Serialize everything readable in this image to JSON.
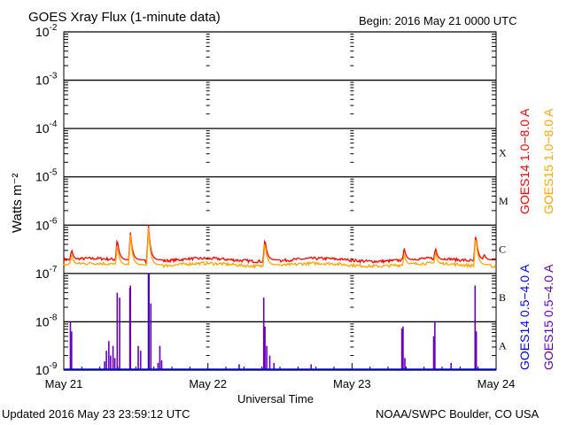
{
  "header": {
    "title": "GOES Xray Flux (1-minute data)",
    "begin": "Begin:  2016 May 21 0000 UTC"
  },
  "footer": {
    "updated": "Updated 2016 May 23 23:59:12 UTC",
    "source": "NOAA/SWPC Boulder, CO USA"
  },
  "chart_data": {
    "type": "line",
    "title": "GOES Xray Flux (1-minute data)",
    "xlabel": "Universal Time",
    "ylabel": "Watts m⁻²",
    "xlim": [
      0,
      72
    ],
    "ylim_log10": [
      -9,
      -2
    ],
    "yscale": "log",
    "x_ticks": [
      {
        "h": 0,
        "label": "May 21"
      },
      {
        "h": 24,
        "label": "May 22"
      },
      {
        "h": 48,
        "label": "May 23"
      },
      {
        "h": 72,
        "label": "May 24"
      }
    ],
    "y_ticks": [
      {
        "e": -2,
        "label": "-2"
      },
      {
        "e": -3,
        "label": "-3"
      },
      {
        "e": -4,
        "label": "-4"
      },
      {
        "e": -5,
        "label": "-5"
      },
      {
        "e": -6,
        "label": "-6"
      },
      {
        "e": -7,
        "label": "-7"
      },
      {
        "e": -8,
        "label": "-8"
      },
      {
        "e": -9,
        "label": "-9"
      }
    ],
    "flare_classes": [
      {
        "label": "X",
        "e": -4
      },
      {
        "label": "M",
        "e": -5
      },
      {
        "label": "C",
        "e": -6
      },
      {
        "label": "B",
        "e": -7
      },
      {
        "label": "A",
        "e": -8
      }
    ],
    "series": [
      {
        "name": "GOES14 1.0−8.0 A",
        "color": "#ff0000",
        "baseline": -6.72,
        "peaks": [
          [
            1.3,
            -6.5
          ],
          [
            8.9,
            -6.26
          ],
          [
            11.1,
            -6.15
          ],
          [
            14.1,
            -6.0
          ],
          [
            20.5,
            -6.7
          ],
          [
            33.5,
            -6.26
          ],
          [
            45,
            -6.72
          ],
          [
            56.7,
            -6.48
          ],
          [
            61.9,
            -6.46
          ],
          [
            68.6,
            -6.15
          ],
          [
            70,
            -6.6
          ]
        ]
      },
      {
        "name": "GOES15 1.0−8.0 A",
        "color": "#ffa500",
        "baseline": -6.82,
        "peaks": [
          [
            1.3,
            -6.6
          ],
          [
            8.9,
            -6.4
          ],
          [
            11.1,
            -6.2
          ],
          [
            14.1,
            -6.05
          ],
          [
            33.5,
            -6.35
          ],
          [
            56.7,
            -6.6
          ],
          [
            61.9,
            -6.55
          ],
          [
            68.6,
            -6.2
          ]
        ]
      },
      {
        "name": "GOES14 0.5−4.0 A",
        "color": "#0000ff",
        "spikes": [
          [
            11.1,
            -8.26
          ],
          [
            14.1,
            -7.0
          ],
          [
            33.4,
            -8.9
          ],
          [
            68.6,
            -8.2
          ]
        ]
      },
      {
        "name": "GOES15 0.5−4.0 A",
        "color": "#6600bb",
        "spikes": [
          [
            1.1,
            -8.0
          ],
          [
            1.3,
            -8.2
          ],
          [
            6.8,
            -8.82
          ],
          [
            7.1,
            -8.6
          ],
          [
            7.5,
            -8.4
          ],
          [
            7.8,
            -8.7
          ],
          [
            8.2,
            -8.5
          ],
          [
            8.5,
            -8.75
          ],
          [
            8.9,
            -7.4
          ],
          [
            9.3,
            -7.5
          ],
          [
            11.0,
            -7.3
          ],
          [
            11.1,
            -7.25
          ],
          [
            12.4,
            -8.5
          ],
          [
            12.8,
            -8.6
          ],
          [
            14.2,
            -7.0
          ],
          [
            14.5,
            -7.62
          ],
          [
            15.7,
            -8.85
          ],
          [
            16.0,
            -8.5
          ],
          [
            16.3,
            -8.8
          ],
          [
            29.2,
            -8.88
          ],
          [
            33.3,
            -7.5
          ],
          [
            33.5,
            -8.1
          ],
          [
            33.8,
            -8.5
          ],
          [
            34.3,
            -8.7
          ],
          [
            35,
            -8.85
          ],
          [
            41.2,
            -8.88
          ],
          [
            56.3,
            -8.14
          ],
          [
            56.5,
            -8.1
          ],
          [
            56.8,
            -8.75
          ],
          [
            61.6,
            -8.3
          ],
          [
            61.8,
            -8.0
          ],
          [
            64.5,
            -8.85
          ],
          [
            68.5,
            -7.25
          ],
          [
            68.7,
            -8.2
          ]
        ]
      }
    ]
  }
}
